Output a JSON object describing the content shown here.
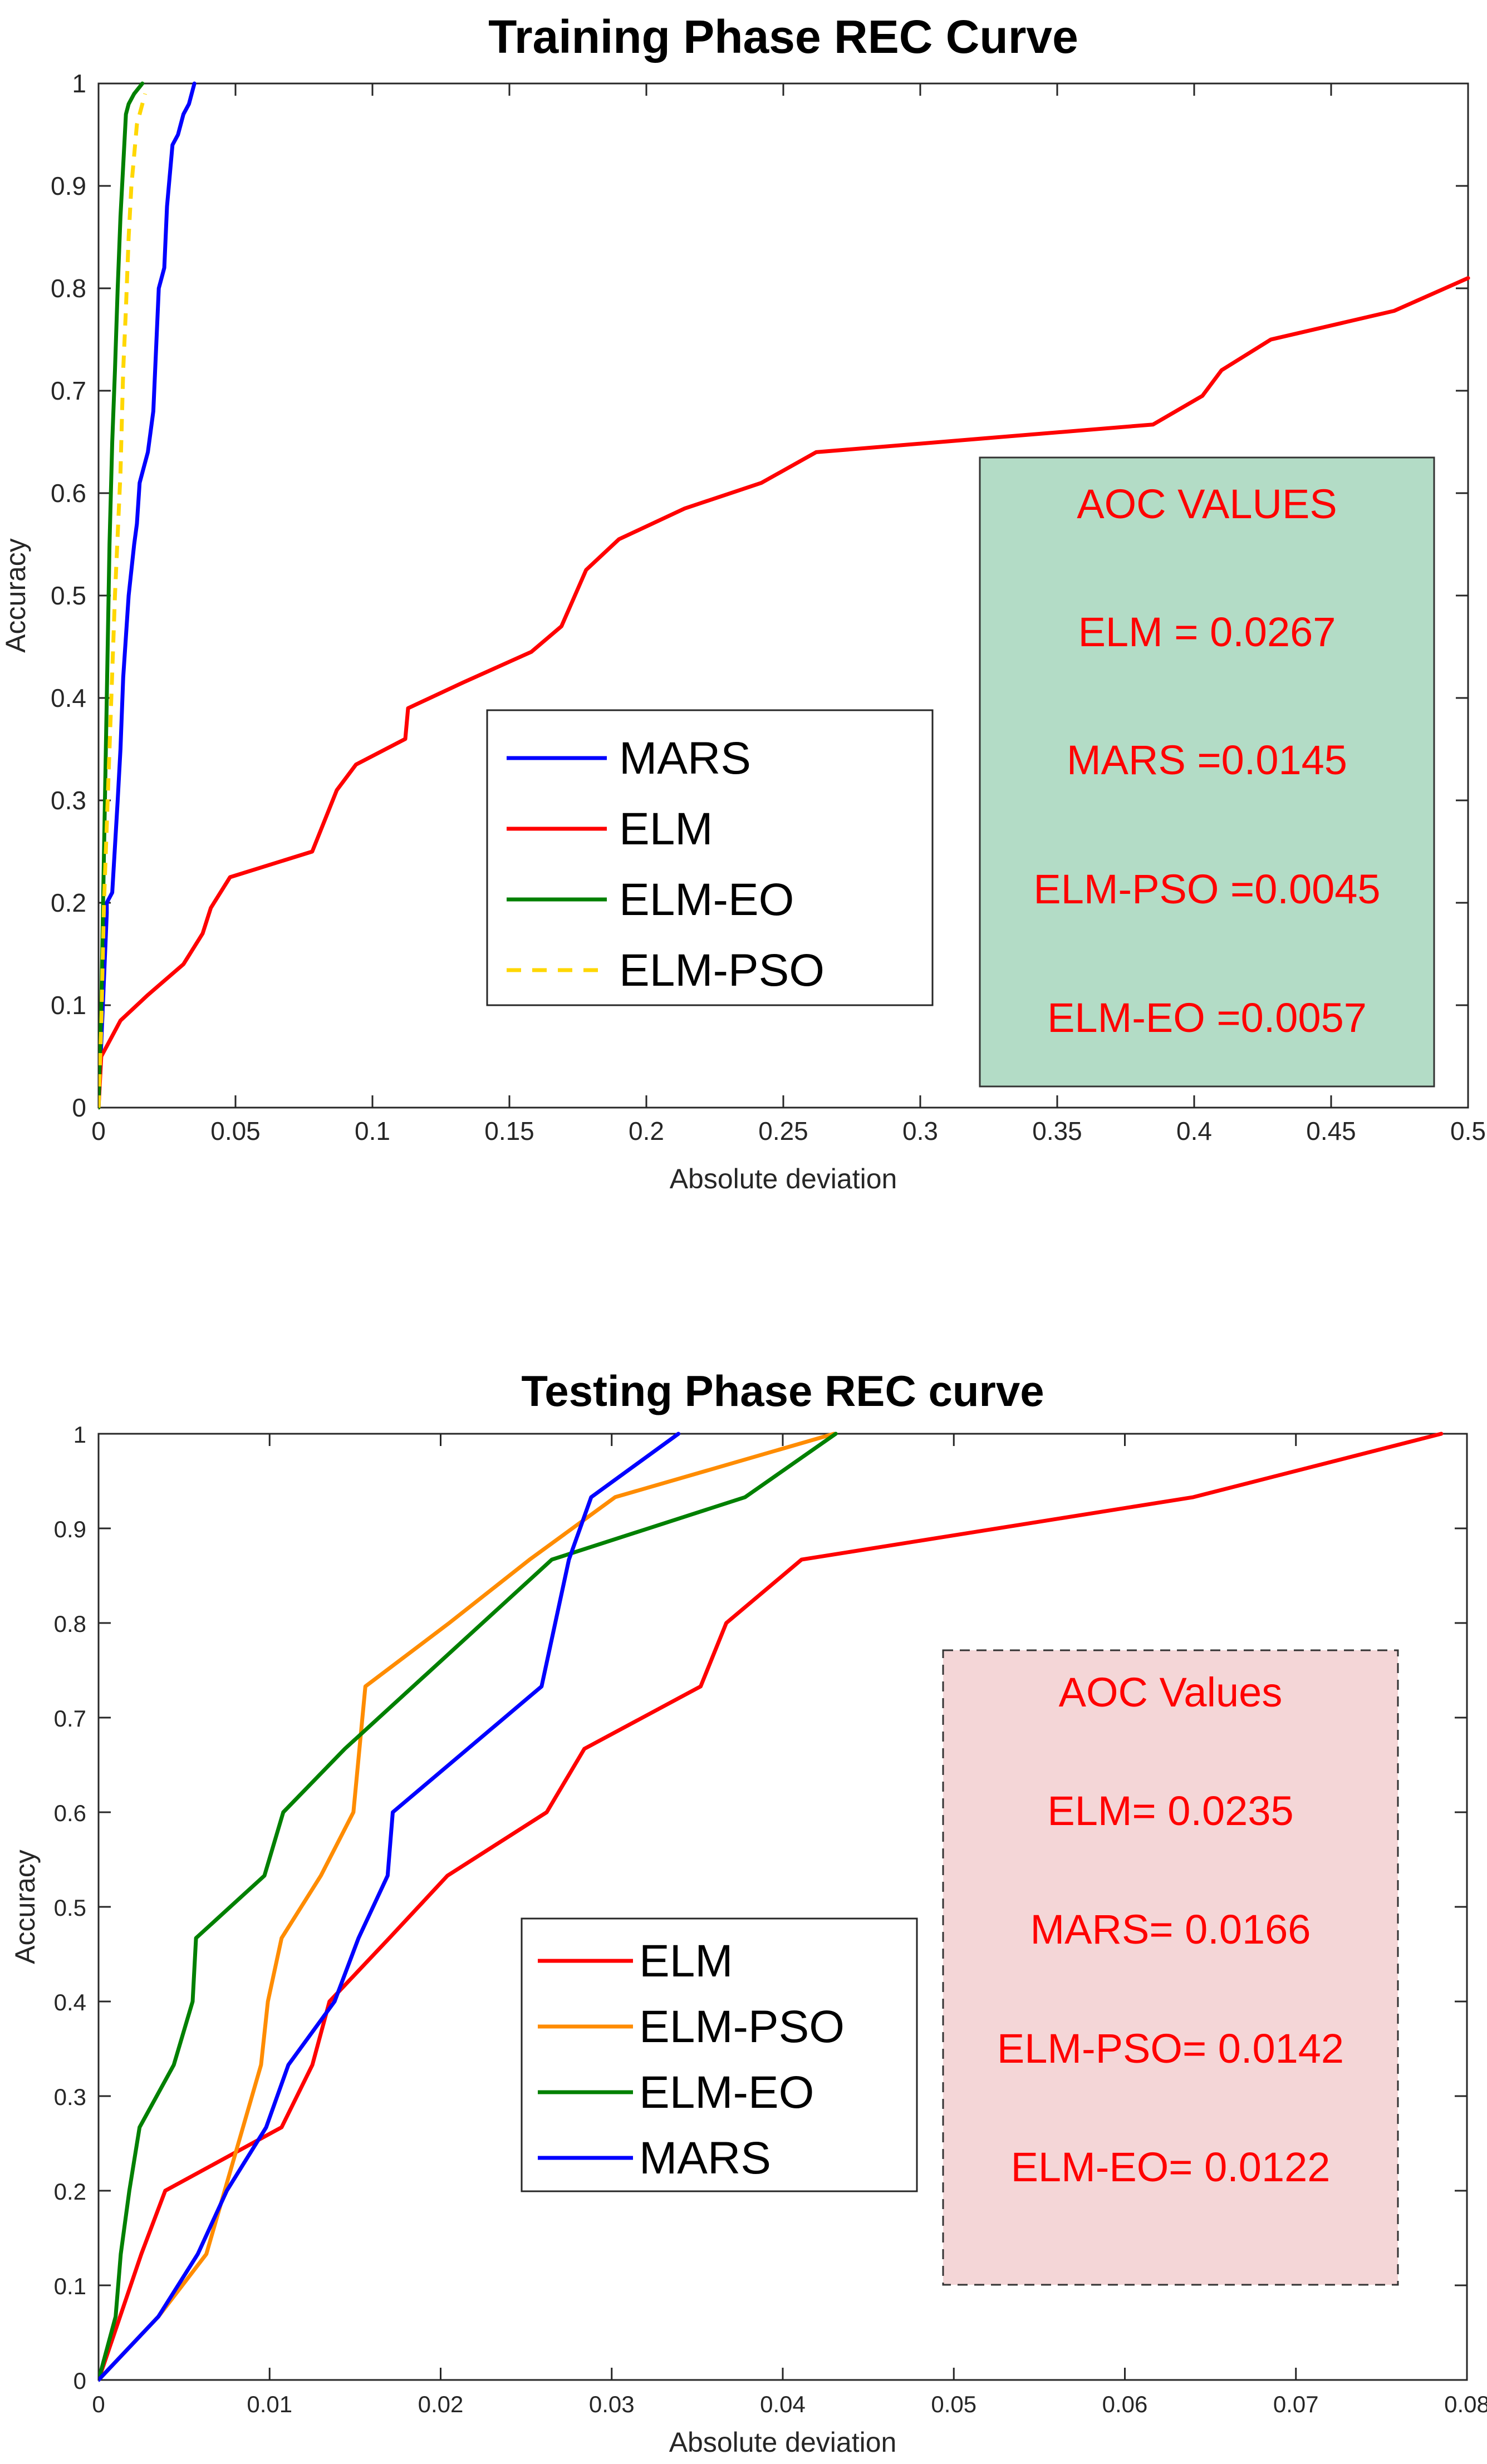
{
  "chart_data": [
    {
      "type": "line",
      "title": "Training Phase REC Curve",
      "xlabel": "Absolute deviation",
      "ylabel": "Accuracy",
      "xlim": [
        0,
        0.5
      ],
      "ylim": [
        0,
        1
      ],
      "xticks": [
        "0",
        "0.05",
        "0.1",
        "0.15",
        "0.2",
        "0.25",
        "0.3",
        "0.35",
        "0.4",
        "0.45",
        "0.5"
      ],
      "yticks": [
        "0",
        "0.1",
        "0.2",
        "0.3",
        "0.4",
        "0.5",
        "0.6",
        "0.7",
        "0.8",
        "0.9",
        "1"
      ],
      "legend_position": "center",
      "series": [
        {
          "name": "MARS",
          "color": "#0000ff",
          "dash": false,
          "x": [
            0,
            0.003,
            0.003,
            0.005,
            0.007,
            0.008,
            0.009,
            0.011,
            0.013,
            0.014,
            0.015,
            0.016,
            0.018,
            0.02,
            0.022,
            0.024,
            0.025,
            0.027,
            0.029,
            0.031,
            0.033,
            0.035,
            0.035
          ],
          "y": [
            0,
            0.19,
            0.2,
            0.21,
            0.3,
            0.35,
            0.42,
            0.5,
            0.55,
            0.57,
            0.61,
            0.62,
            0.64,
            0.68,
            0.8,
            0.82,
            0.88,
            0.94,
            0.95,
            0.97,
            0.98,
            1,
            1
          ]
        },
        {
          "name": "ELM",
          "color": "#ff0000",
          "dash": false,
          "x": [
            0,
            0.001,
            0.003,
            0.008,
            0.018,
            0.031,
            0.038,
            0.041,
            0.048,
            0.078,
            0.087,
            0.094,
            0.112,
            0.113,
            0.133,
            0.158,
            0.169,
            0.178,
            0.19,
            0.214,
            0.242,
            0.262,
            0.385,
            0.403,
            0.41,
            0.428,
            0.473,
            0.5
          ],
          "y": [
            0,
            0.05,
            0.06,
            0.085,
            0.11,
            0.14,
            0.17,
            0.195,
            0.225,
            0.25,
            0.31,
            0.335,
            0.36,
            0.39,
            0.415,
            0.445,
            0.47,
            0.525,
            0.555,
            0.585,
            0.61,
            0.64,
            0.667,
            0.695,
            0.72,
            0.75,
            0.778,
            0.81
          ]
        },
        {
          "name": "ELM-EO",
          "color": "#008000",
          "dash": false,
          "x": [
            0,
            0.001,
            0.002,
            0.003,
            0.004,
            0.005,
            0.006,
            0.007,
            0.008,
            0.009,
            0.01,
            0.011,
            0.013,
            0.016
          ],
          "y": [
            0,
            0.1,
            0.25,
            0.4,
            0.55,
            0.65,
            0.72,
            0.8,
            0.87,
            0.92,
            0.97,
            0.98,
            0.99,
            1
          ]
        },
        {
          "name": "ELM-PSO",
          "color": "#ffd700",
          "dash": true,
          "x": [
            0,
            0.001,
            0.002,
            0.004,
            0.006,
            0.008,
            0.009,
            0.01,
            0.011,
            0.012,
            0.013,
            0.014,
            0.016,
            0.017
          ],
          "y": [
            0,
            0.08,
            0.2,
            0.35,
            0.5,
            0.62,
            0.72,
            0.78,
            0.85,
            0.9,
            0.93,
            0.96,
            0.98,
            0.99
          ]
        }
      ],
      "annotation": {
        "lines": [
          "AOC VALUES",
          "ELM = 0.0267",
          "MARS =0.0145",
          "ELM-PSO =0.0045",
          "ELM-EO =0.0057"
        ],
        "fill": "#b3dcc6",
        "text_color": "#ff0000"
      }
    },
    {
      "type": "line",
      "title": "Testing Phase REC curve",
      "xlabel": "Absolute deviation",
      "ylabel": "Accuracy",
      "xlim": [
        0,
        0.08
      ],
      "ylim": [
        0,
        1
      ],
      "xticks": [
        "0",
        "0.01",
        "0.02",
        "0.03",
        "0.04",
        "0.05",
        "0.06",
        "0.07",
        "0.08"
      ],
      "yticks": [
        "0",
        "0.1",
        "0.2",
        "0.3",
        "0.4",
        "0.5",
        "0.6",
        "0.7",
        "0.8",
        "0.9",
        "1"
      ],
      "legend_position": "center",
      "series": [
        {
          "name": "ELM",
          "color": "#ff0000",
          "dash": false,
          "x": [
            0,
            0.0025,
            0.0039,
            0.0107,
            0.0125,
            0.0135,
            0.017,
            0.0204,
            0.0262,
            0.0284,
            0.0352,
            0.0367,
            0.0411,
            0.064,
            0.0785
          ],
          "y": [
            0,
            0.133,
            0.2,
            0.267,
            0.333,
            0.4,
            0.467,
            0.533,
            0.6,
            0.667,
            0.733,
            0.8,
            0.867,
            0.933,
            1
          ]
        },
        {
          "name": "ELM-PSO",
          "color": "#ff8c00",
          "dash": false,
          "x": [
            0,
            0.0035,
            0.0063,
            0.0095,
            0.0099,
            0.0107,
            0.013,
            0.0149,
            0.0156,
            0.0205,
            0.0252,
            0.0302,
            0.043
          ],
          "y": [
            0,
            0.067,
            0.133,
            0.333,
            0.4,
            0.467,
            0.533,
            0.6,
            0.733,
            0.8,
            0.867,
            0.933,
            1
          ]
        },
        {
          "name": "ELM-EO",
          "color": "#008000",
          "dash": false,
          "x": [
            0,
            0.001,
            0.0013,
            0.0018,
            0.0024,
            0.0044,
            0.0055,
            0.0057,
            0.0097,
            0.0108,
            0.0144,
            0.0265,
            0.0378,
            0.0431
          ],
          "y": [
            0,
            0.067,
            0.133,
            0.2,
            0.267,
            0.333,
            0.4,
            0.467,
            0.533,
            0.6,
            0.667,
            0.867,
            0.933,
            1
          ]
        },
        {
          "name": "MARS",
          "color": "#0000ff",
          "dash": false,
          "x": [
            0,
            0.0035,
            0.0058,
            0.0075,
            0.0098,
            0.0111,
            0.0138,
            0.0152,
            0.0169,
            0.0172,
            0.0259,
            0.0275,
            0.0288,
            0.0339
          ],
          "y": [
            0,
            0.067,
            0.133,
            0.2,
            0.267,
            0.333,
            0.4,
            0.467,
            0.533,
            0.6,
            0.733,
            0.867,
            0.933,
            1
          ]
        }
      ],
      "annotation": {
        "lines": [
          "AOC Values",
          "ELM= 0.0235",
          "MARS= 0.0166",
          "ELM-PSO= 0.0142",
          "ELM-EO= 0.0122"
        ],
        "fill": "#f4d6d7",
        "text_color": "#ff0000"
      }
    }
  ]
}
